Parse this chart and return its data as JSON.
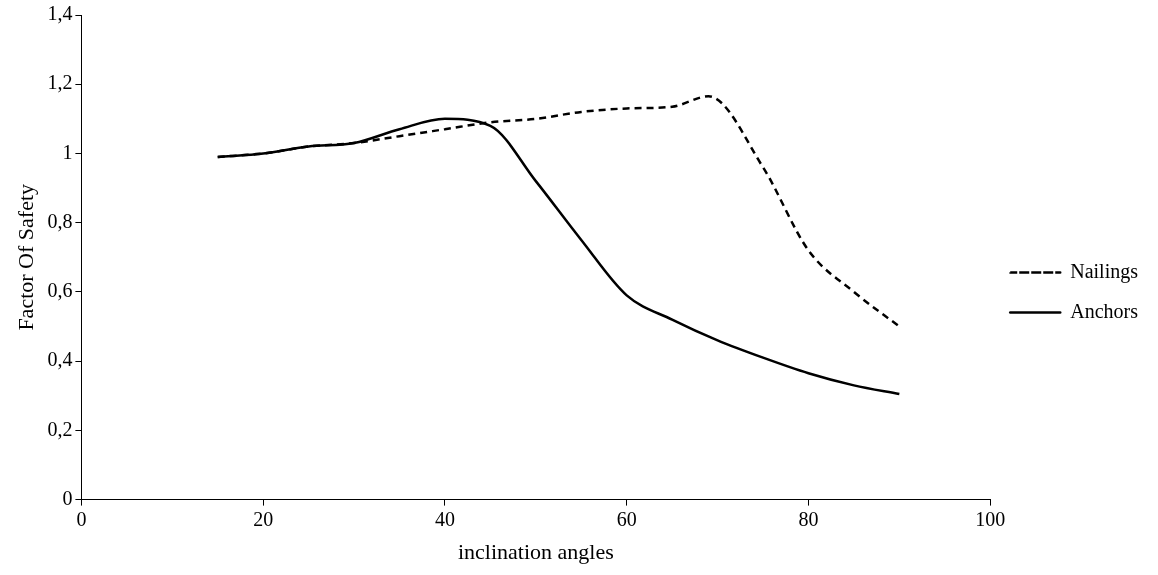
{
  "chart_data": {
    "type": "line",
    "xlabel": "inclination angles",
    "ylabel": "Factor Of Safety",
    "xlim": [
      0,
      100
    ],
    "xticks": [
      0,
      20,
      40,
      60,
      80,
      100
    ],
    "ylim": [
      0,
      1.4
    ],
    "yticks": [
      {
        "value": 0,
        "label": "0"
      },
      {
        "value": 0.2,
        "label": "0,2"
      },
      {
        "value": 0.4,
        "label": "0,4"
      },
      {
        "value": 0.6,
        "label": "0,6"
      },
      {
        "value": 0.8,
        "label": "0,8"
      },
      {
        "value": 1,
        "label": "1"
      },
      {
        "value": 1.2,
        "label": "1,2"
      },
      {
        "value": 1.4,
        "label": "1,4"
      }
    ],
    "grid": false,
    "legend": "right",
    "marker": "none",
    "series": [
      {
        "name": "Nailings",
        "color": "#000000",
        "line_style": "dashed",
        "x": [
          15,
          20,
          25,
          30,
          35,
          40,
          45,
          50,
          55,
          60,
          65,
          69,
          75,
          80,
          85,
          90
        ],
        "values": [
          0.99,
          1.0,
          1.02,
          1.03,
          1.05,
          1.07,
          1.09,
          1.1,
          1.12,
          1.13,
          1.135,
          1.165,
          0.96,
          0.72,
          0.6,
          0.5
        ]
      },
      {
        "name": "Anchors",
        "color": "#000000",
        "line_style": "solid",
        "x": [
          15,
          20,
          25,
          30,
          35,
          40,
          45,
          50,
          55,
          60,
          65,
          70,
          75,
          80,
          85,
          90
        ],
        "values": [
          0.99,
          1.0,
          1.02,
          1.03,
          1.07,
          1.1,
          1.08,
          0.92,
          0.75,
          0.59,
          0.52,
          0.46,
          0.41,
          0.365,
          0.33,
          0.305
        ]
      }
    ]
  }
}
